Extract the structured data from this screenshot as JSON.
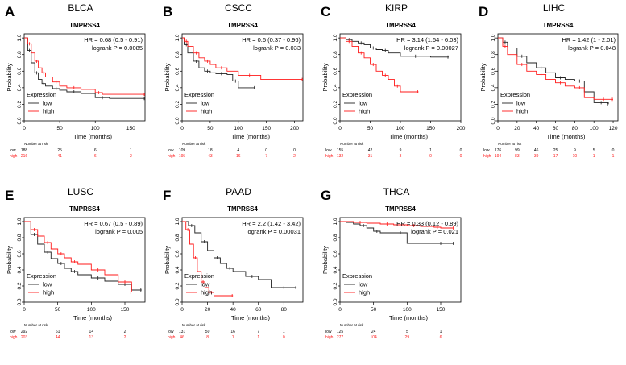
{
  "colors": {
    "low": "#222222",
    "high": "#ff1a1a",
    "axis": "#000000"
  },
  "common": {
    "ylabel": "Probability",
    "xlabel": "Time (months)",
    "legend_title": "Expression",
    "legend_low": "low",
    "legend_high": "high",
    "risk_header": "Number at risk",
    "risk_low": "low",
    "risk_high": "high",
    "y_ticks": [
      "0.0",
      "0.2",
      "0.4",
      "0.6",
      "0.8",
      "1.0"
    ]
  },
  "chart_data": [
    {
      "type": "line",
      "letter": "A",
      "cancer": "BLCA",
      "gene": "TMPRSS4",
      "hr": "HR = 0.68 (0.5 - 0.91)",
      "logrank": "logrank P = 0.0085",
      "xlim": [
        0,
        170
      ],
      "xticks": [
        0,
        50,
        100,
        150
      ],
      "ylim": [
        0,
        1.05
      ],
      "risk_low": [
        "188",
        "25",
        "6",
        "1"
      ],
      "risk_high": [
        "216",
        "41",
        "6",
        "2"
      ],
      "series": [
        {
          "name": "low",
          "x": [
            0,
            5,
            10,
            15,
            20,
            25,
            30,
            40,
            50,
            60,
            80,
            100,
            120,
            170
          ],
          "y": [
            1,
            0.85,
            0.7,
            0.58,
            0.5,
            0.45,
            0.42,
            0.39,
            0.37,
            0.35,
            0.33,
            0.28,
            0.27,
            0.27
          ]
        },
        {
          "name": "high",
          "x": [
            0,
            5,
            10,
            15,
            20,
            25,
            30,
            40,
            50,
            60,
            80,
            100,
            110,
            170
          ],
          "y": [
            1,
            0.93,
            0.82,
            0.72,
            0.64,
            0.58,
            0.53,
            0.47,
            0.42,
            0.4,
            0.38,
            0.34,
            0.32,
            0.32
          ]
        }
      ]
    },
    {
      "type": "line",
      "letter": "B",
      "cancer": "CSCC",
      "gene": "TMPRSS4",
      "hr": "HR = 0.6 (0.37 - 0.96)",
      "logrank": "logrank P = 0.033",
      "xlim": [
        0,
        215
      ],
      "xticks": [
        0,
        50,
        100,
        150,
        200
      ],
      "ylim": [
        0,
        1.05
      ],
      "risk_low": [
        "109",
        "18",
        "4",
        "0",
        "0"
      ],
      "risk_high": [
        "195",
        "43",
        "16",
        "7",
        "2"
      ],
      "series": [
        {
          "name": "low",
          "x": [
            0,
            5,
            10,
            20,
            30,
            40,
            50,
            60,
            80,
            90,
            100,
            130
          ],
          "y": [
            1,
            0.92,
            0.82,
            0.72,
            0.64,
            0.6,
            0.58,
            0.57,
            0.56,
            0.48,
            0.4,
            0.4
          ]
        },
        {
          "name": "high",
          "x": [
            0,
            5,
            10,
            20,
            30,
            40,
            50,
            60,
            80,
            100,
            140,
            215
          ],
          "y": [
            1,
            0.96,
            0.9,
            0.82,
            0.76,
            0.72,
            0.68,
            0.64,
            0.6,
            0.55,
            0.5,
            0.5
          ]
        }
      ]
    },
    {
      "type": "line",
      "letter": "C",
      "cancer": "KIRP",
      "gene": "TMPRSS4",
      "hr": "HR = 3.14 (1.64 - 6.03)",
      "logrank": "logrank P = 0.00027",
      "xlim": [
        0,
        200
      ],
      "xticks": [
        0,
        50,
        100,
        150,
        200
      ],
      "ylim": [
        0,
        1.05
      ],
      "risk_low": [
        "155",
        "42",
        "9",
        "1",
        "0"
      ],
      "risk_high": [
        "132",
        "31",
        "3",
        "0",
        "0"
      ],
      "series": [
        {
          "name": "low",
          "x": [
            0,
            10,
            20,
            30,
            40,
            50,
            60,
            70,
            80,
            100,
            150,
            180
          ],
          "y": [
            1,
            0.98,
            0.96,
            0.94,
            0.92,
            0.88,
            0.86,
            0.85,
            0.82,
            0.78,
            0.77,
            0.77
          ]
        },
        {
          "name": "high",
          "x": [
            0,
            10,
            20,
            30,
            40,
            50,
            60,
            70,
            80,
            90,
            100,
            130
          ],
          "y": [
            1,
            0.96,
            0.9,
            0.82,
            0.76,
            0.68,
            0.6,
            0.55,
            0.5,
            0.42,
            0.35,
            0.35
          ]
        }
      ]
    },
    {
      "type": "line",
      "letter": "D",
      "cancer": "LIHC",
      "gene": "TMPRSS4",
      "hr": "HR = 1.42 (1 - 2.01)",
      "logrank": "logrank P = 0.048",
      "xlim": [
        0,
        125
      ],
      "xticks": [
        0,
        20,
        40,
        60,
        80,
        100,
        120
      ],
      "ylim": [
        0,
        1.05
      ],
      "risk_low": [
        "176",
        "99",
        "46",
        "25",
        "9",
        "5",
        "0"
      ],
      "risk_high": [
        "194",
        "83",
        "39",
        "17",
        "10",
        "1",
        "1"
      ],
      "series": [
        {
          "name": "low",
          "x": [
            0,
            5,
            10,
            20,
            30,
            40,
            50,
            60,
            70,
            80,
            90,
            100,
            115
          ],
          "y": [
            1,
            0.95,
            0.88,
            0.78,
            0.7,
            0.64,
            0.58,
            0.52,
            0.5,
            0.48,
            0.35,
            0.22,
            0.2
          ]
        },
        {
          "name": "high",
          "x": [
            0,
            5,
            10,
            20,
            30,
            40,
            50,
            60,
            70,
            80,
            90,
            100,
            120
          ],
          "y": [
            1,
            0.9,
            0.8,
            0.68,
            0.6,
            0.56,
            0.5,
            0.46,
            0.42,
            0.4,
            0.28,
            0.26,
            0.26
          ]
        }
      ]
    },
    {
      "type": "line",
      "letter": "E",
      "cancer": "LUSC",
      "gene": "TMPRSS4",
      "hr": "HR = 0.67 (0.5 - 0.89)",
      "logrank": "logrank P = 0.005",
      "xlim": [
        0,
        180
      ],
      "xticks": [
        0,
        50,
        100,
        150
      ],
      "ylim": [
        0,
        1.05
      ],
      "risk_low": [
        "292",
        "61",
        "14",
        "2"
      ],
      "risk_high": [
        "203",
        "44",
        "13",
        "2"
      ],
      "series": [
        {
          "name": "low",
          "x": [
            0,
            10,
            20,
            30,
            40,
            50,
            60,
            70,
            80,
            100,
            120,
            140,
            160,
            175
          ],
          "y": [
            1,
            0.84,
            0.72,
            0.62,
            0.54,
            0.48,
            0.42,
            0.38,
            0.34,
            0.3,
            0.26,
            0.22,
            0.15,
            0.15
          ]
        },
        {
          "name": "high",
          "x": [
            0,
            10,
            20,
            30,
            40,
            50,
            60,
            70,
            80,
            100,
            120,
            140,
            160
          ],
          "y": [
            1,
            0.9,
            0.82,
            0.74,
            0.66,
            0.6,
            0.55,
            0.5,
            0.47,
            0.4,
            0.34,
            0.25,
            0.12
          ]
        }
      ]
    },
    {
      "type": "line",
      "letter": "F",
      "cancer": "PAAD",
      "gene": "TMPRSS4",
      "hr": "HR = 2.2 (1.42 - 3.42)",
      "logrank": "logrank P = 0.00031",
      "xlim": [
        0,
        95
      ],
      "xticks": [
        0,
        20,
        40,
        60,
        80
      ],
      "ylim": [
        0,
        1.05
      ],
      "risk_low": [
        "131",
        "50",
        "16",
        "7",
        "1"
      ],
      "risk_high": [
        "46",
        "8",
        "1",
        "1",
        "0"
      ],
      "series": [
        {
          "name": "low",
          "x": [
            0,
            5,
            10,
            15,
            20,
            25,
            30,
            35,
            40,
            50,
            60,
            70,
            90
          ],
          "y": [
            1,
            0.95,
            0.86,
            0.75,
            0.64,
            0.55,
            0.48,
            0.42,
            0.38,
            0.32,
            0.28,
            0.18,
            0.18
          ]
        },
        {
          "name": "high",
          "x": [
            0,
            3,
            6,
            9,
            12,
            15,
            18,
            21,
            25,
            40
          ],
          "y": [
            1,
            0.9,
            0.72,
            0.55,
            0.38,
            0.25,
            0.18,
            0.12,
            0.08,
            0.08
          ]
        }
      ]
    },
    {
      "type": "line",
      "letter": "G",
      "cancer": "THCA",
      "gene": "TMPRSS4",
      "hr": "HR = 0.33 (0.12 - 0.89)",
      "logrank": "logrank P = 0.021",
      "xlim": [
        0,
        180
      ],
      "xticks": [
        0,
        50,
        100,
        150
      ],
      "ylim": [
        0,
        1.05
      ],
      "risk_low": [
        "125",
        "24",
        "5",
        "1"
      ],
      "risk_high": [
        "277",
        "104",
        "29",
        "6"
      ],
      "series": [
        {
          "name": "low",
          "x": [
            0,
            10,
            20,
            30,
            40,
            50,
            60,
            80,
            100,
            130,
            170
          ],
          "y": [
            1,
            0.99,
            0.97,
            0.95,
            0.92,
            0.88,
            0.86,
            0.86,
            0.73,
            0.73,
            0.73
          ]
        },
        {
          "name": "high",
          "x": [
            0,
            20,
            40,
            60,
            80,
            100,
            120,
            140,
            150,
            170
          ],
          "y": [
            1,
            0.99,
            0.98,
            0.97,
            0.96,
            0.95,
            0.94,
            0.93,
            0.92,
            0.92
          ]
        }
      ]
    }
  ]
}
